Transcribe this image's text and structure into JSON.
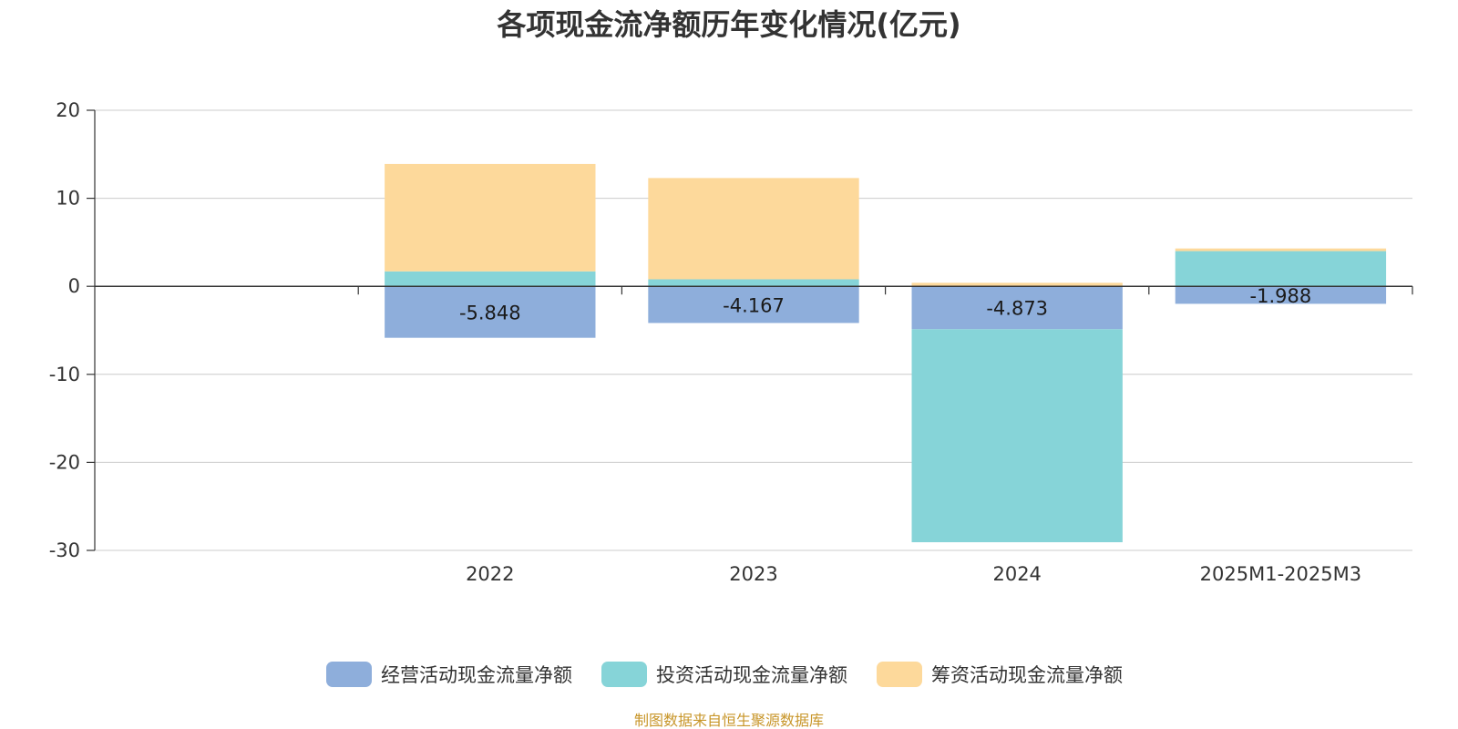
{
  "chart_data": {
    "type": "bar",
    "stacked": true,
    "title": "各项现金流净额历年变化情况(亿元)",
    "categories": [
      "",
      "2022",
      "2023",
      "2024",
      "2025M1-2025M3"
    ],
    "yticks": [
      "20",
      "10",
      "0",
      "-10",
      "-20",
      "-30"
    ],
    "ylim": [
      -30,
      20
    ],
    "grid": true,
    "legend_position": "bottom",
    "series": [
      {
        "name": "经营活动现金流量净额",
        "color": "#8eaedb",
        "values": [
          null,
          -5.848,
          -4.167,
          -4.873,
          -1.988
        ],
        "labels": [
          "",
          "-5.848",
          "-4.167",
          "-4.873",
          "-1.988"
        ]
      },
      {
        "name": "投资活动现金流量净额",
        "color": "#86d4d8",
        "values": [
          null,
          1.7,
          0.8,
          -24.2,
          4.0
        ]
      },
      {
        "name": "筹资活动现金流量净额",
        "color": "#fdd99b",
        "values": [
          null,
          12.2,
          11.5,
          0.4,
          0.3
        ]
      }
    ]
  },
  "source": "制图数据来自恒生聚源数据库",
  "source_color": "#c8962a"
}
